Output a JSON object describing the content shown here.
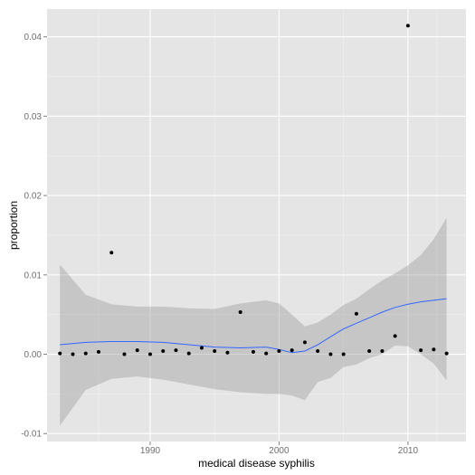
{
  "chart_data": {
    "type": "scatter",
    "xlabel": "medical disease syphilis",
    "ylabel": "proportion",
    "xlim": [
      1982,
      2014.5
    ],
    "ylim": [
      -0.011,
      0.0435
    ],
    "x_ticks": [
      1990,
      2000,
      2010
    ],
    "x_tick_labels": [
      "1990",
      "2000",
      "2010"
    ],
    "y_ticks": [
      -0.01,
      0.0,
      0.01,
      0.02,
      0.03,
      0.04
    ],
    "y_tick_labels": [
      "-0.01",
      "0.00",
      "0.01",
      "0.02",
      "0.03",
      "0.04"
    ],
    "grid": true,
    "points": [
      {
        "x": 1983,
        "y": 0.0001
      },
      {
        "x": 1984,
        "y": 0.0
      },
      {
        "x": 1985,
        "y": 0.0001
      },
      {
        "x": 1986,
        "y": 0.0003
      },
      {
        "x": 1987,
        "y": 0.0128
      },
      {
        "x": 1988,
        "y": 0.0
      },
      {
        "x": 1989,
        "y": 0.0005
      },
      {
        "x": 1990,
        "y": 0.0
      },
      {
        "x": 1991,
        "y": 0.0004
      },
      {
        "x": 1992,
        "y": 0.0005
      },
      {
        "x": 1993,
        "y": 0.0001
      },
      {
        "x": 1994,
        "y": 0.0008
      },
      {
        "x": 1995,
        "y": 0.0004
      },
      {
        "x": 1996,
        "y": 0.0002
      },
      {
        "x": 1997,
        "y": 0.0053
      },
      {
        "x": 1998,
        "y": 0.0003
      },
      {
        "x": 1999,
        "y": 0.0001
      },
      {
        "x": 2000,
        "y": 0.0004
      },
      {
        "x": 2001,
        "y": 0.0005
      },
      {
        "x": 2002,
        "y": 0.0015
      },
      {
        "x": 2003,
        "y": 0.0004
      },
      {
        "x": 2004,
        "y": 0.0
      },
      {
        "x": 2005,
        "y": 0.0
      },
      {
        "x": 2006,
        "y": 0.0051
      },
      {
        "x": 2007,
        "y": 0.0004
      },
      {
        "x": 2008,
        "y": 0.0004
      },
      {
        "x": 2009,
        "y": 0.0023
      },
      {
        "x": 2010,
        "y": 0.0414
      },
      {
        "x": 2011,
        "y": 0.0005
      },
      {
        "x": 2012,
        "y": 0.0006
      },
      {
        "x": 2013,
        "y": 0.0001
      }
    ],
    "smooth": {
      "x": [
        1983,
        1985,
        1987,
        1989,
        1991,
        1993,
        1995,
        1997,
        1999,
        2000,
        2001,
        2002,
        2003,
        2004,
        2005,
        2006,
        2007,
        2008,
        2009,
        2010,
        2011,
        2012,
        2013
      ],
      "y": [
        0.0012,
        0.0015,
        0.0016,
        0.0016,
        0.0015,
        0.0012,
        0.0009,
        0.0008,
        0.0009,
        0.0006,
        0.0002,
        0.0004,
        0.0012,
        0.0022,
        0.0032,
        0.0039,
        0.0046,
        0.0053,
        0.0059,
        0.0063,
        0.0066,
        0.0068,
        0.007
      ],
      "upper": [
        0.0113,
        0.0075,
        0.0063,
        0.006,
        0.006,
        0.0058,
        0.0057,
        0.0064,
        0.0068,
        0.0064,
        0.005,
        0.0035,
        0.004,
        0.005,
        0.0062,
        0.007,
        0.0082,
        0.0093,
        0.0102,
        0.0112,
        0.0125,
        0.0145,
        0.0172
      ],
      "lower": [
        -0.009,
        -0.0045,
        -0.0031,
        -0.0028,
        -0.0032,
        -0.0038,
        -0.0044,
        -0.0048,
        -0.005,
        -0.005,
        -0.0052,
        -0.0058,
        -0.0035,
        -0.003,
        -0.0016,
        -0.0013,
        -0.0005,
        0.0,
        0.0011,
        0.001,
        0.0,
        -0.0012,
        -0.0033
      ]
    },
    "colors": {
      "panel_background": "#e5e5e5",
      "grid": "#ffffff",
      "points": "#000000",
      "line": "#3366ff",
      "ribbon": "#999999"
    }
  }
}
